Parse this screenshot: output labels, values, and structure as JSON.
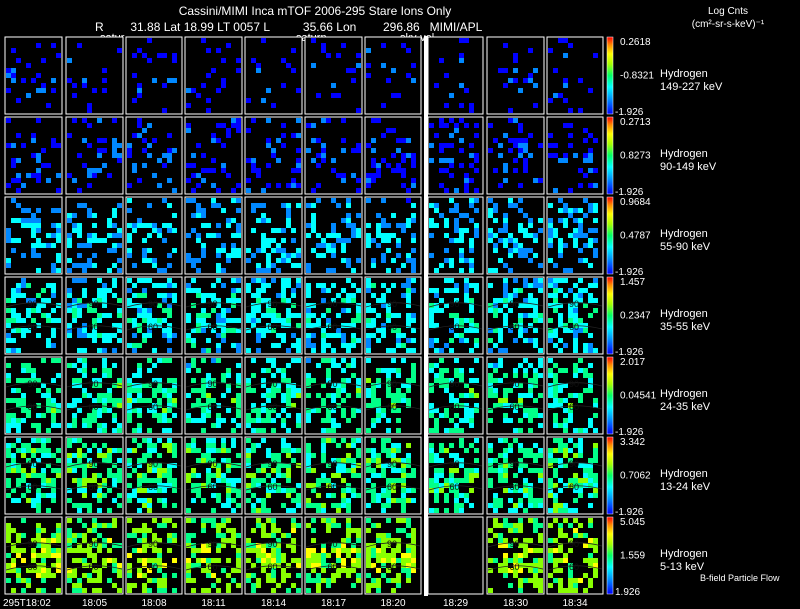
{
  "header": {
    "title": "Cassini/MIMI Inca mTOF  2006-295   Stare   Ions Only",
    "subtitle": "R        31.88 Lat 18.99 LT 0057 L          35.66 Lon        296.86   MIMI/APL",
    "overlay_labels": [
      "satur",
      "saturn",
      "sky-vel"
    ],
    "cbar_label_line1": "Log Cnts",
    "cbar_label_line2": "(cm²-sr-s-keV)⁻¹"
  },
  "footer": {
    "bfield_label": "B-field Particle Flow"
  },
  "chart_data": {
    "type": "heatmap",
    "title": "Cassini/MIMI Inca mTOF  2006-295   Stare   Ions Only",
    "time_labels": [
      "295T18:02",
      "18:05",
      "18:08",
      "18:11",
      "18:14",
      "18:17",
      "18:20",
      "18:29",
      "18:30",
      "18:34"
    ],
    "contour_labels": [
      "90",
      "60"
    ],
    "colormap": [
      "#0000ff",
      "#0088ff",
      "#00ffff",
      "#00ff88",
      "#88ff00",
      "#ffff00",
      "#ff8800",
      "#ff0000"
    ],
    "gap_color": "#ffffff",
    "rows": [
      {
        "species": "Hydrogen",
        "energy": "149-227 keV",
        "cmax": "0.2618",
        "cmid": "-0.8321",
        "cmin": "-1.926",
        "level": 0.08,
        "density": 0.13,
        "spread": 0.06,
        "contours": false,
        "missing": []
      },
      {
        "species": "Hydrogen",
        "energy": "90-149 keV",
        "cmax": "0.2713",
        "cmid": "0.8273",
        "cmin": "-1.926",
        "level": 0.1,
        "density": 0.27,
        "spread": 0.08,
        "contours": false,
        "missing": []
      },
      {
        "species": "Hydrogen",
        "energy": "55-90 keV",
        "cmax": "0.9684",
        "cmid": "0.4787",
        "cmin": "-1.926",
        "level": 0.24,
        "density": 0.4,
        "spread": 0.1,
        "contours": false,
        "missing": []
      },
      {
        "species": "Hydrogen",
        "energy": "35-55 keV",
        "cmax": "1.457",
        "cmid": "0.2347",
        "cmin": "-1.926",
        "level": 0.3,
        "density": 0.52,
        "spread": 0.1,
        "contours": true,
        "missing": []
      },
      {
        "species": "Hydrogen",
        "energy": "24-35 keV",
        "cmax": "2.017",
        "cmid": "0.04541",
        "cmin": "-1.926",
        "level": 0.38,
        "density": 0.52,
        "spread": 0.12,
        "contours": true,
        "missing": []
      },
      {
        "species": "Hydrogen",
        "energy": "13-24 keV",
        "cmax": "3.342",
        "cmid": "0.7062",
        "cmin": "-1.926",
        "level": 0.42,
        "density": 0.62,
        "spread": 0.11,
        "contours": true,
        "missing": []
      },
      {
        "species": "Hydrogen",
        "energy": "5-13 keV",
        "cmax": "5.045",
        "cmid": "1.559",
        "cmin": "1.926",
        "level": 0.54,
        "density": 0.6,
        "spread": 0.1,
        "contours": true,
        "missing": [
          7
        ]
      }
    ]
  }
}
